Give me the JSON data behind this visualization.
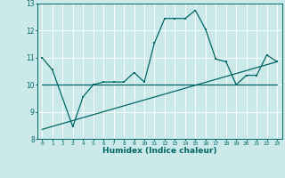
{
  "title": "",
  "xlabel": "Humidex (Indice chaleur)",
  "ylabel": "",
  "xlim": [
    -0.5,
    23.5
  ],
  "ylim": [
    8,
    13
  ],
  "yticks": [
    8,
    9,
    10,
    11,
    12,
    13
  ],
  "xticks": [
    0,
    1,
    2,
    3,
    4,
    5,
    6,
    7,
    8,
    9,
    10,
    11,
    12,
    13,
    14,
    15,
    16,
    17,
    18,
    19,
    20,
    21,
    22,
    23
  ],
  "xtick_labels": [
    "0",
    "1",
    "2",
    "3",
    "4",
    "5",
    "6",
    "7",
    "8",
    "9",
    "10",
    "11",
    "12",
    "13",
    "14",
    "15",
    "16",
    "17",
    "18",
    "19",
    "20",
    "21",
    "22",
    "23"
  ],
  "bg_color": "#cce9e9",
  "line_color": "#006666",
  "grid_color": "#ffffff",
  "line1_x": [
    0,
    1,
    3,
    4,
    5,
    6,
    7,
    8,
    9,
    10,
    11,
    12,
    13,
    14,
    15,
    16,
    17,
    18,
    19,
    20,
    21,
    22,
    23
  ],
  "line1_y": [
    11.0,
    10.55,
    8.45,
    9.55,
    10.0,
    10.1,
    10.1,
    10.1,
    10.45,
    10.1,
    11.55,
    12.45,
    12.45,
    12.45,
    12.75,
    12.05,
    10.95,
    10.85,
    10.0,
    10.35,
    10.35,
    11.1,
    10.85
  ],
  "line2_x": [
    0,
    23
  ],
  "line2_y": [
    10.0,
    10.0
  ],
  "line3_x": [
    0,
    23
  ],
  "line3_y": [
    8.35,
    10.85
  ]
}
